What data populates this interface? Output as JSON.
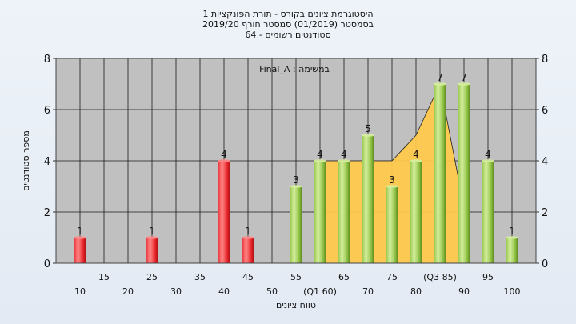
{
  "chart_data": {
    "type": "bar",
    "title_lines": [
      "היסטוגרמת ציונים בקורס - תורת הפונקציות 1",
      "בסמסטר  (01/2019)  סמסטר חורף 2019/20",
      "סטודנטים רשומים - 64"
    ],
    "annotation": "במשימה : Final_A",
    "xlabel": "טווח ציונים",
    "ylabel": "מספר סטודנטים",
    "ylim": [
      0,
      8
    ],
    "yticks": [
      "0",
      "2",
      "4",
      "6",
      "8"
    ],
    "x_tick_labels": [
      {
        "x": 10,
        "label": "10",
        "row": 2
      },
      {
        "x": 15,
        "label": "15",
        "row": 1
      },
      {
        "x": 20,
        "label": "20",
        "row": 2
      },
      {
        "x": 25,
        "label": "25",
        "row": 1
      },
      {
        "x": 30,
        "label": "30",
        "row": 2
      },
      {
        "x": 35,
        "label": "35",
        "row": 1
      },
      {
        "x": 40,
        "label": "40",
        "row": 2
      },
      {
        "x": 45,
        "label": "45",
        "row": 1
      },
      {
        "x": 50,
        "label": "50",
        "row": 2
      },
      {
        "x": 55,
        "label": "55",
        "row": 1
      },
      {
        "x": 60,
        "label": "(Q1 60)",
        "row": 2
      },
      {
        "x": 65,
        "label": "65",
        "row": 1
      },
      {
        "x": 70,
        "label": "70",
        "row": 2
      },
      {
        "x": 75,
        "label": "75",
        "row": 1
      },
      {
        "x": 80,
        "label": "80",
        "row": 2
      },
      {
        "x": 85,
        "label": "(Q3 85)",
        "row": 1
      },
      {
        "x": 90,
        "label": "90",
        "row": 2
      },
      {
        "x": 95,
        "label": "95",
        "row": 1
      },
      {
        "x": 100,
        "label": "100",
        "row": 2
      }
    ],
    "bars": [
      {
        "x": 10,
        "value": 1,
        "color": "red"
      },
      {
        "x": 25,
        "value": 1,
        "color": "red"
      },
      {
        "x": 40,
        "value": 4,
        "color": "red"
      },
      {
        "x": 45,
        "value": 1,
        "color": "red"
      },
      {
        "x": 55,
        "value": 3,
        "color": "green"
      },
      {
        "x": 60,
        "value": 4,
        "color": "green"
      },
      {
        "x": 65,
        "value": 4,
        "color": "green"
      },
      {
        "x": 70,
        "value": 5,
        "color": "green"
      },
      {
        "x": 75,
        "value": 3,
        "color": "green"
      },
      {
        "x": 80,
        "value": 4,
        "color": "green"
      },
      {
        "x": 85,
        "value": 7,
        "color": "green"
      },
      {
        "x": 90,
        "value": 7,
        "color": "green"
      },
      {
        "x": 95,
        "value": 4,
        "color": "green"
      },
      {
        "x": 100,
        "value": 1,
        "color": "green"
      }
    ],
    "quartile_area": [
      {
        "x": 60,
        "y": 4
      },
      {
        "x": 65,
        "y": 4
      },
      {
        "x": 70,
        "y": 4
      },
      {
        "x": 75,
        "y": 4
      },
      {
        "x": 80,
        "y": 5
      },
      {
        "x": 85,
        "y": 7
      },
      {
        "x": 90,
        "y": 2.2
      }
    ],
    "colors": {
      "plot_bg": "#c0c0c0",
      "grid": "#1a1a1a",
      "area": "#ffc94d",
      "red_light": "#ff8a8a",
      "red_mid": "#e8262b",
      "red_dark": "#9e0c0f",
      "green_light": "#d6f0a0",
      "green_mid": "#8fc042",
      "green_dark": "#4f7a16"
    }
  }
}
